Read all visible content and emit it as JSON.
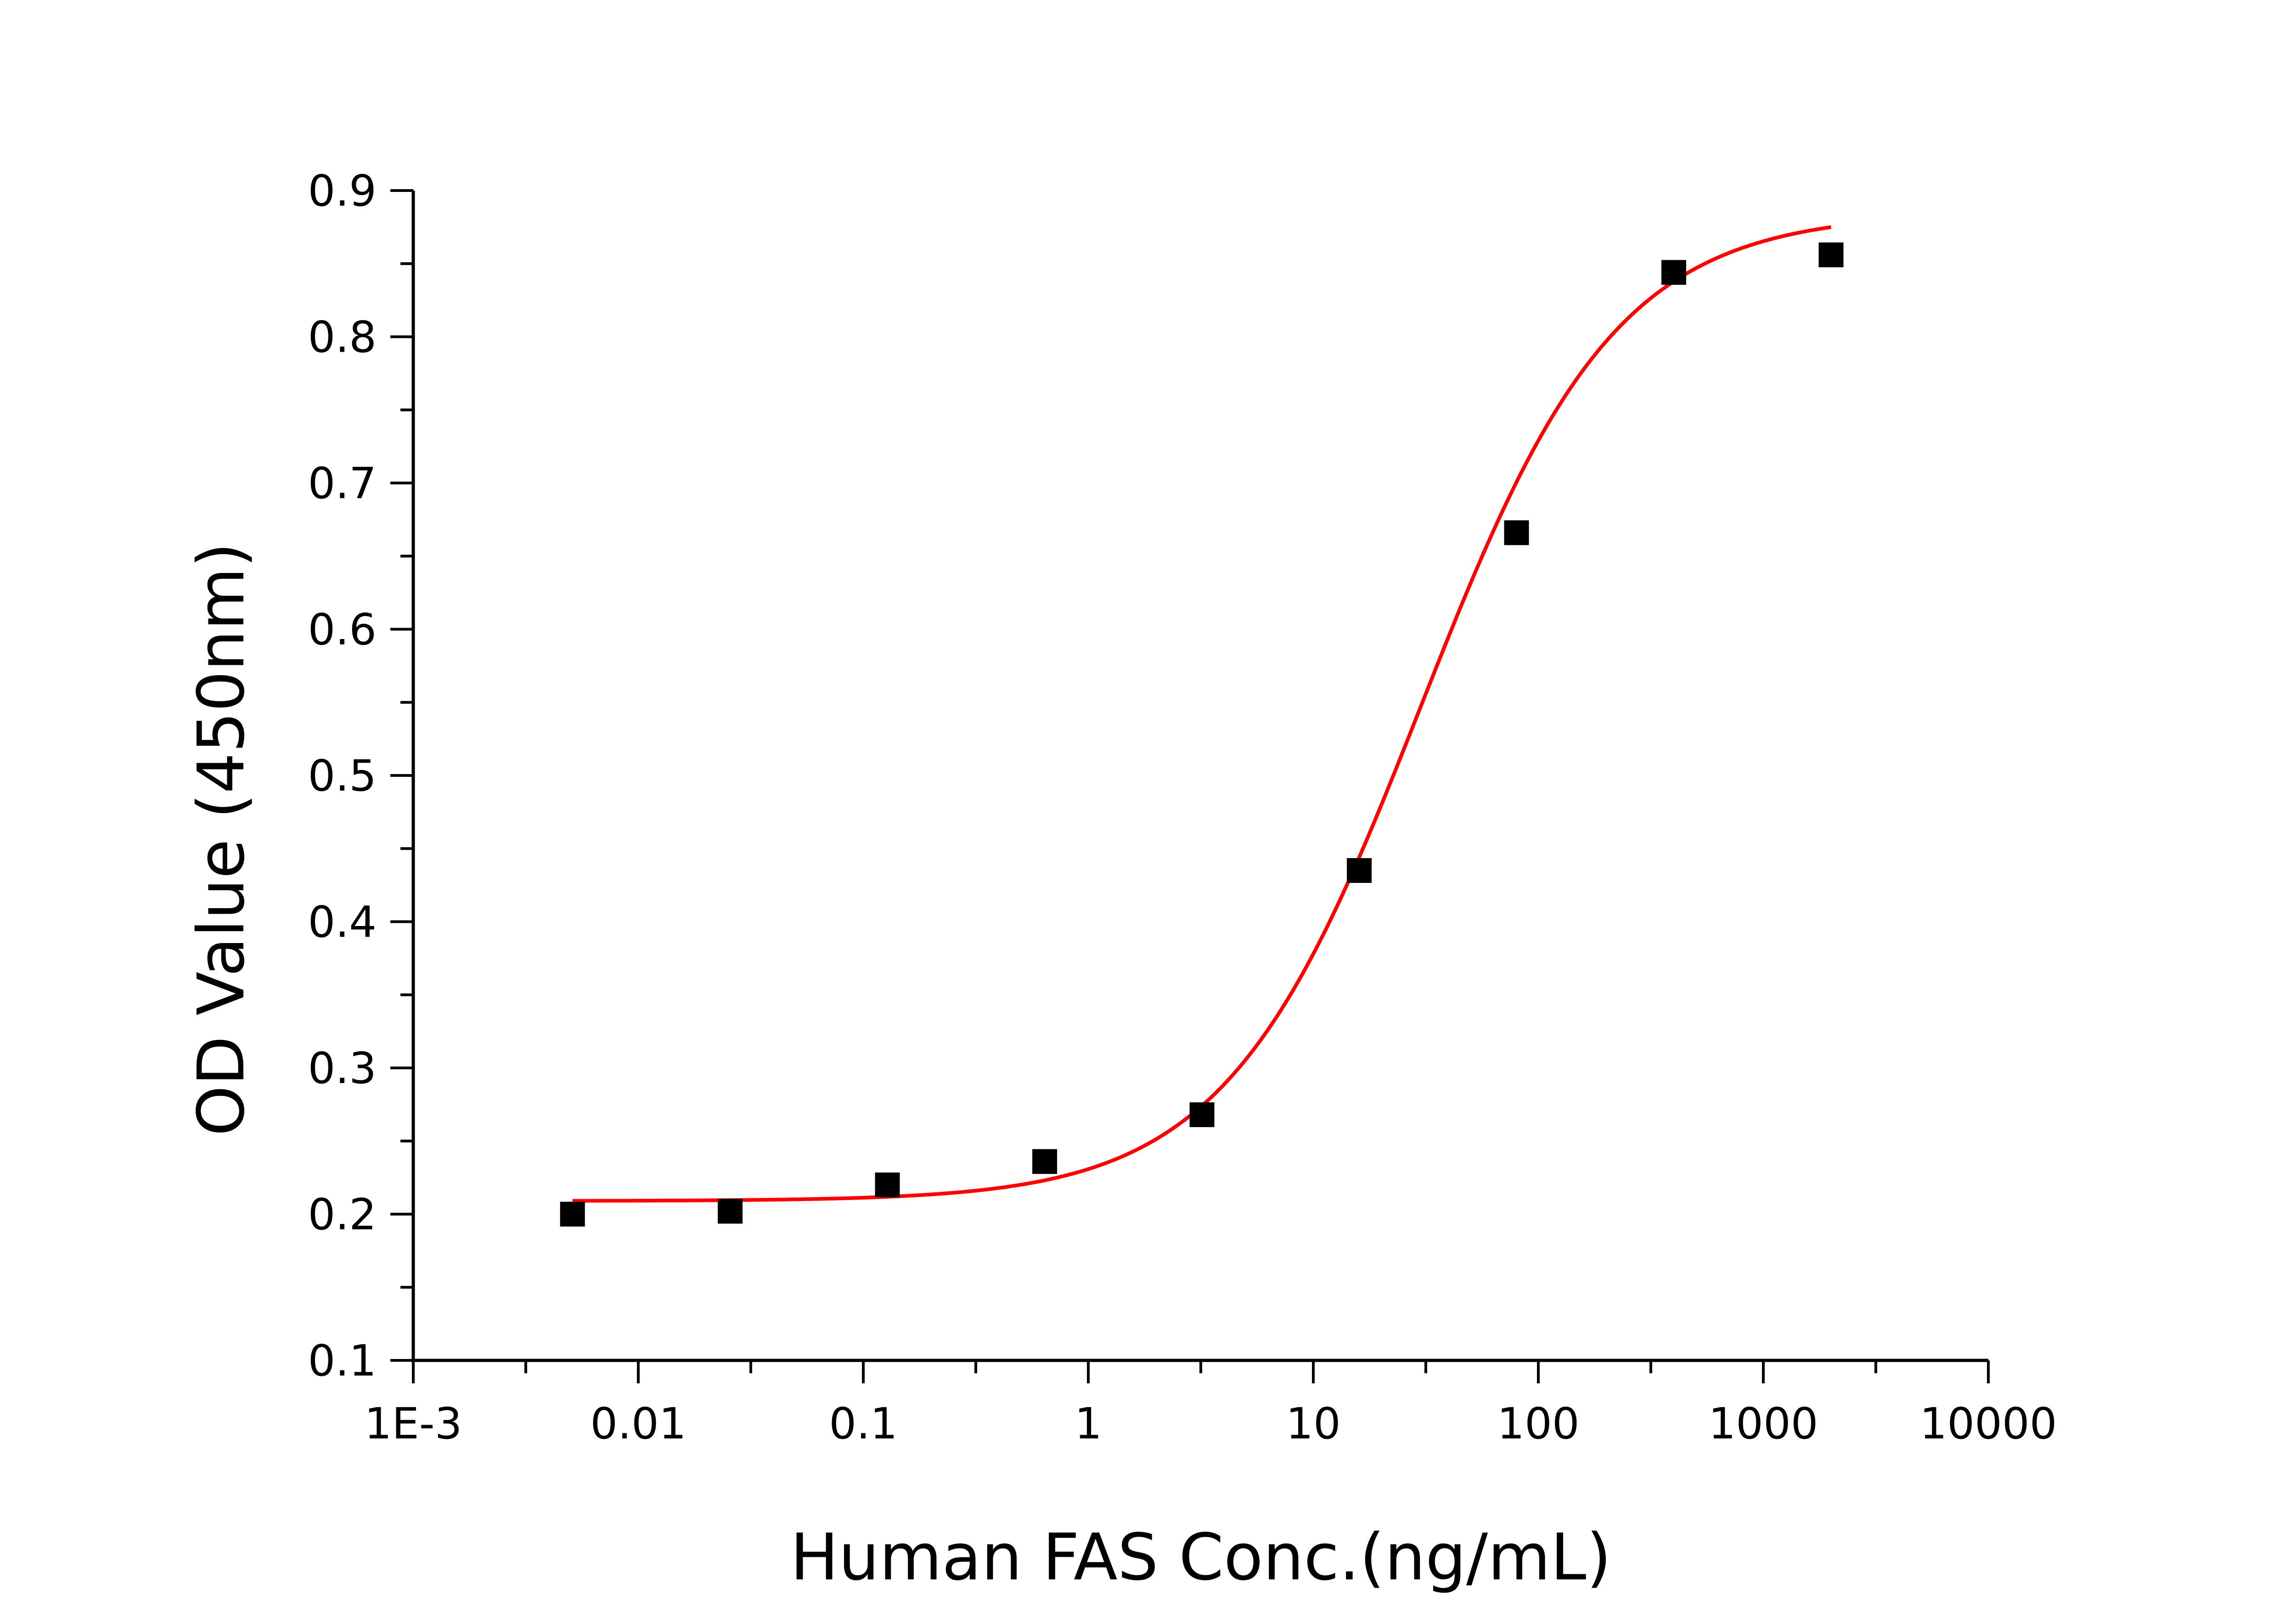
{
  "chart_data": {
    "type": "scatter",
    "xlabel": "Human FAS Conc.(ng/mL)",
    "ylabel": "OD Value (450nm)",
    "x_scale": "log",
    "xlim": [
      0.001,
      10000
    ],
    "ylim": [
      0.1,
      0.9
    ],
    "x_ticks": [
      0.001,
      0.01,
      0.1,
      1,
      10,
      100,
      1000,
      10000
    ],
    "x_tick_labels": [
      "1E-3",
      "0.01",
      "0.1",
      "1",
      "10",
      "100",
      "1000",
      "10000"
    ],
    "y_ticks": [
      0.1,
      0.2,
      0.3,
      0.4,
      0.5,
      0.6,
      0.7,
      0.8,
      0.9
    ],
    "y_tick_labels": [
      "0.1",
      "0.2",
      "0.3",
      "0.4",
      "0.5",
      "0.6",
      "0.7",
      "0.8",
      "0.9"
    ],
    "grid": false,
    "points": {
      "x": [
        0.0051,
        0.0256,
        0.128,
        0.64,
        3.2,
        16,
        80,
        400,
        2000
      ],
      "y": [
        0.2,
        0.202,
        0.22,
        0.236,
        0.268,
        0.435,
        0.666,
        0.844,
        0.856
      ],
      "color": "#000000",
      "marker": "square"
    },
    "fit": {
      "model": "4PL",
      "bottom": 0.209,
      "top": 0.885,
      "ec50": 30,
      "hill": 1.0,
      "x_range": [
        0.0051,
        2000
      ],
      "color": "#ff0000"
    }
  }
}
